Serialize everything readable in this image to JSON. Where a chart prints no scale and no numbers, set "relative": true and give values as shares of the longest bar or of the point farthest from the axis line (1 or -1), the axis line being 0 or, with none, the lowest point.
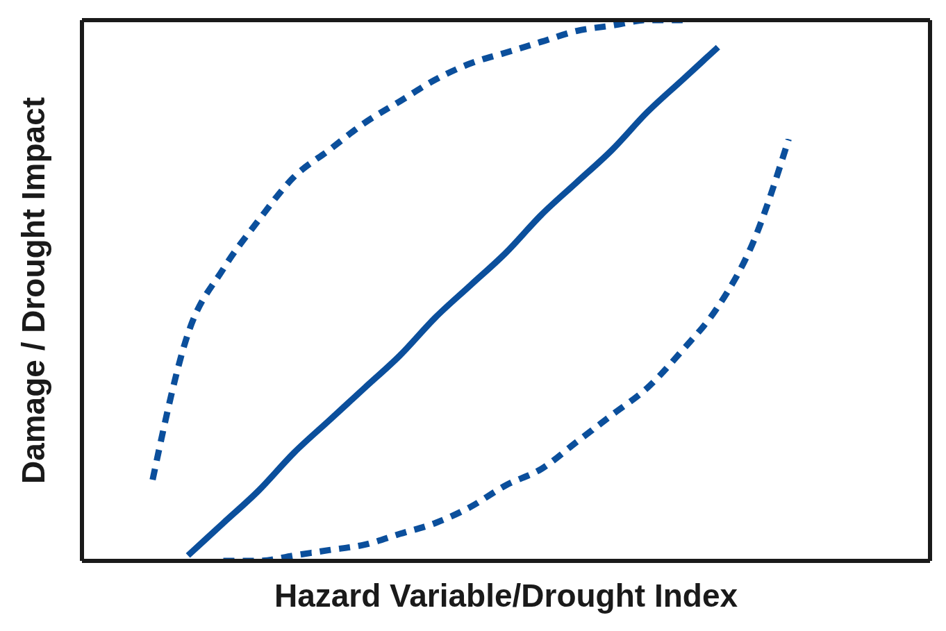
{
  "chart_data": {
    "type": "line",
    "relative": true,
    "xlabel": "Hazard Variable/Drought Index",
    "ylabel": "Damage /  Drought Impact",
    "grid": false,
    "legend": false,
    "marker": "none",
    "categories": [
      null,
      null,
      null,
      null,
      null,
      null,
      null,
      null,
      null,
      null,
      null,
      null,
      null,
      null,
      null,
      null,
      null,
      null,
      null,
      null,
      null,
      null,
      null,
      null,
      null
    ],
    "series": [
      {
        "color": "#0b4f9c",
        "line_style": "solid",
        "values": [
          null,
          null,
          null,
          0.01,
          0.07,
          0.13,
          0.2,
          0.26,
          0.32,
          0.38,
          0.45,
          0.51,
          0.57,
          0.64,
          0.7,
          0.76,
          0.83,
          0.89,
          0.95,
          null,
          null,
          null,
          null,
          null,
          null
        ]
      },
      {
        "color": "#0b4f9c",
        "line_style": "dashed",
        "values": [
          null,
          null,
          0.15,
          0.42,
          0.54,
          0.63,
          0.71,
          0.76,
          0.81,
          0.85,
          0.89,
          0.92,
          0.94,
          0.96,
          0.98,
          0.99,
          1,
          1,
          null,
          null,
          null,
          null,
          null,
          null,
          null
        ]
      },
      {
        "color": "#0b4f9c",
        "line_style": "dashed",
        "values": [
          null,
          null,
          null,
          null,
          0,
          0,
          0.01,
          0.02,
          0.03,
          0.05,
          0.07,
          0.1,
          0.14,
          0.17,
          0.22,
          0.27,
          0.32,
          0.39,
          0.47,
          0.59,
          0.78,
          null,
          null,
          null,
          null
        ]
      }
    ]
  }
}
